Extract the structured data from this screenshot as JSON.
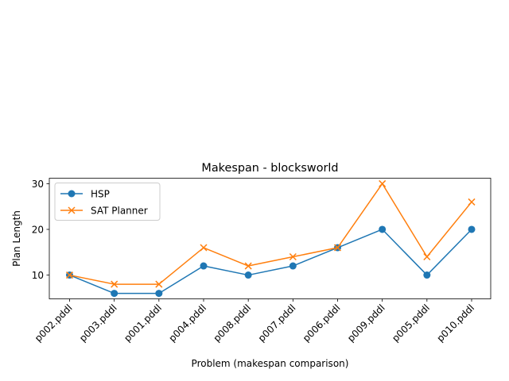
{
  "chart_data": {
    "type": "line",
    "title": "Makespan - blocksworld",
    "xlabel": "Problem (makespan comparison)",
    "ylabel": "Plan Length",
    "categories": [
      "p002.pddl",
      "p003.pddl",
      "p001.pddl",
      "p004.pddl",
      "p008.pddl",
      "p007.pddl",
      "p006.pddl",
      "p009.pddl",
      "p005.pddl",
      "p010.pddl"
    ],
    "series": [
      {
        "name": "HSP",
        "marker": "circle",
        "color": "#1f77b4",
        "values": [
          10,
          6,
          6,
          12,
          10,
          12,
          16,
          20,
          10,
          20
        ]
      },
      {
        "name": "SAT Planner",
        "marker": "x",
        "color": "#ff7f0e",
        "values": [
          10,
          8,
          8,
          16,
          12,
          14,
          16,
          30,
          14,
          26
        ]
      }
    ],
    "ylim": [
      4.8,
      31.2
    ],
    "yticks": [
      10,
      20,
      30
    ],
    "grid": false,
    "legend_position": "upper left"
  }
}
